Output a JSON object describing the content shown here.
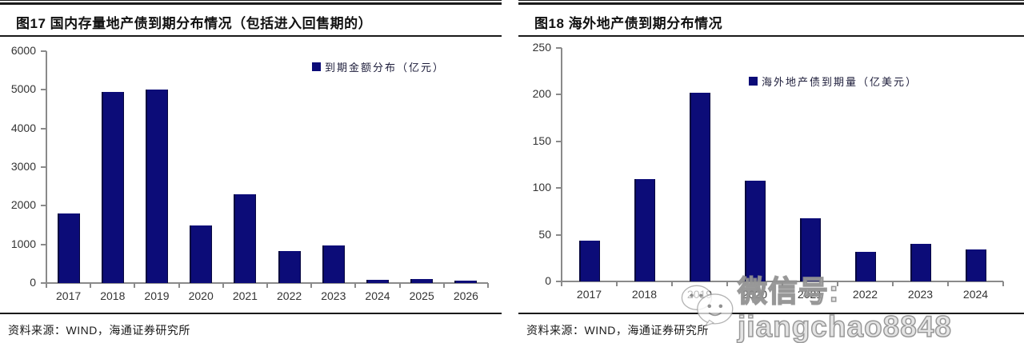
{
  "chart_data": [
    {
      "type": "bar",
      "title": "图17 国内存量地产债到期分布情况（包括进入回售期的）",
      "categories": [
        "2017",
        "2018",
        "2019",
        "2020",
        "2021",
        "2022",
        "2023",
        "2024",
        "2025",
        "2026"
      ],
      "series": [
        {
          "name": "到期金额分布（亿元）",
          "values": [
            1800,
            4950,
            5000,
            1500,
            2300,
            830,
            970,
            90,
            100,
            60
          ]
        }
      ],
      "xlabel": "",
      "ylabel": "",
      "ylim": [
        0,
        6000
      ],
      "ytick_step": 1000,
      "grid": false,
      "legend_position": "top-right",
      "bar_color": "#0c0c78",
      "source": "资料来源：WIND，海通证券研究所"
    },
    {
      "type": "bar",
      "title": "图18 海外地产债到期分布情况",
      "categories": [
        "2017",
        "2018",
        "2019",
        "2020",
        "2021",
        "2022",
        "2023",
        "2024"
      ],
      "series": [
        {
          "name": "海外地产债到期量（亿美元）",
          "values": [
            44,
            110,
            202,
            108,
            68,
            32,
            40,
            34
          ]
        }
      ],
      "xlabel": "",
      "ylabel": "",
      "ylim": [
        0,
        250
      ],
      "ytick_step": 50,
      "grid": false,
      "legend_position": "top-right",
      "bar_color": "#0c0c78",
      "source": "资料来源：WIND，海通证券研究所"
    }
  ],
  "watermark": {
    "text": "微信号: jiangchao8848",
    "icon": "wechat-icon"
  },
  "colors": {
    "bar": "#0c0c78",
    "axis": "#8a8a8a",
    "rule": "#1a1a1a"
  }
}
